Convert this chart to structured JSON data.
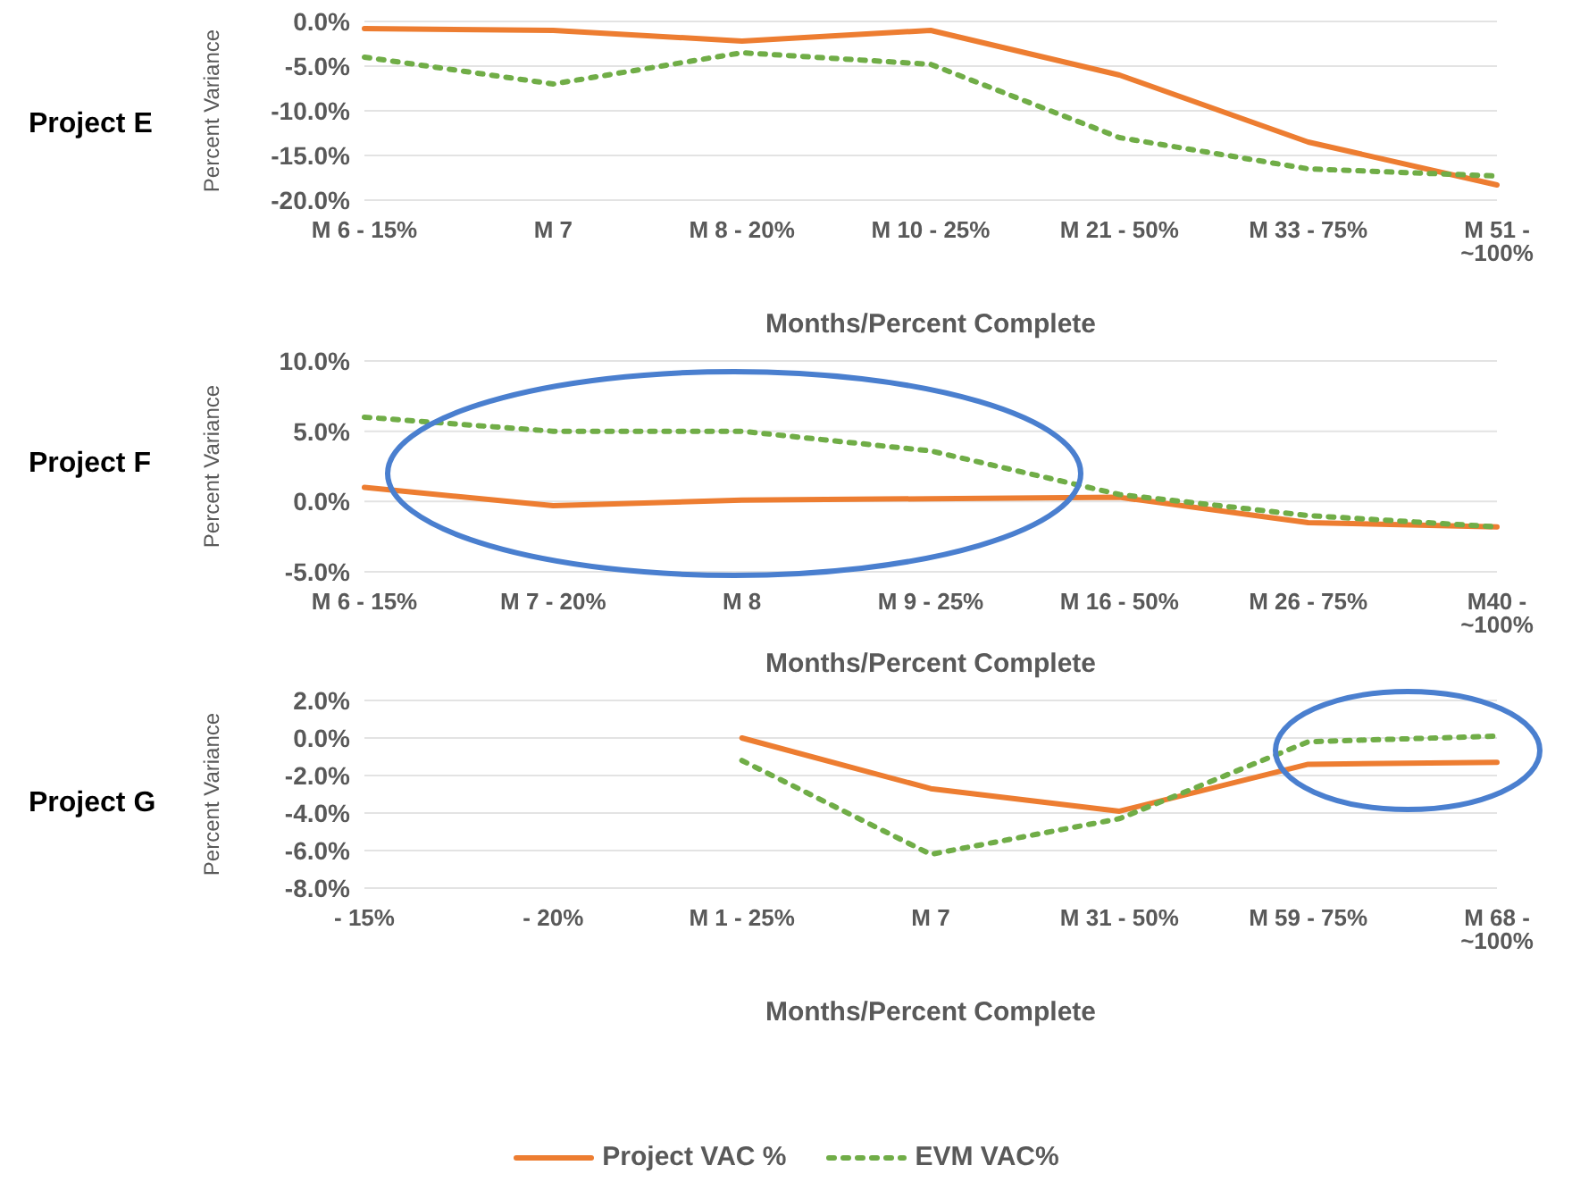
{
  "chart_data": [
    {
      "type": "line",
      "title": "Project E",
      "xlabel": "Months/Percent Complete",
      "ylabel": "Percent Variance",
      "categories": [
        "M 6 - 15%",
        "M 7",
        "M 8 - 20%",
        "M 10 - 25%",
        "M 21 - 50%",
        "M 33 - 75%",
        "M 51 - ~100%"
      ],
      "series": [
        {
          "color": "#ed7d31",
          "line_style": "solid",
          "values": [
            -0.8,
            -1,
            -2.2,
            -1,
            -6,
            -13.5,
            -18.3
          ]
        },
        {
          "color": "#70ad47",
          "line_style": "dotted",
          "values": [
            -4,
            -7,
            -3.5,
            -4.8,
            -13,
            -16.5,
            -17.3
          ]
        }
      ],
      "ylim": [
        -20,
        0
      ],
      "yticks": [
        {
          "value": -20,
          "label": "-20.0%"
        },
        {
          "value": -15,
          "label": "-15.0%"
        },
        {
          "value": -10,
          "label": "-10.0%"
        },
        {
          "value": -5,
          "label": "-5.0%"
        },
        {
          "value": 0,
          "label": "0.0%"
        }
      ],
      "grid": "y",
      "marker": "none",
      "legend": false
    },
    {
      "type": "line",
      "title": "Project F",
      "xlabel": "Months/Percent Complete",
      "ylabel": "Percent Variance",
      "categories": [
        "M 6 - 15%",
        "M 7 - 20%",
        "M 8",
        "M 9 - 25%",
        "M 16 - 50%",
        "M 26 - 75%",
        "M40 - ~100%"
      ],
      "series": [
        {
          "color": "#ed7d31",
          "line_style": "solid",
          "values": [
            1,
            -0.3,
            0.1,
            0.2,
            0.3,
            -1.5,
            -1.8
          ]
        },
        {
          "color": "#70ad47",
          "line_style": "dotted",
          "values": [
            6,
            5,
            5,
            3.6,
            0.5,
            -1,
            -1.8
          ]
        }
      ],
      "ylim": [
        -5,
        10
      ],
      "yticks": [
        {
          "value": -5,
          "label": "-5.0%"
        },
        {
          "value": 0,
          "label": "0.0%"
        },
        {
          "value": 5,
          "label": "5.0%"
        },
        {
          "value": 10,
          "label": "10.0%"
        }
      ],
      "grid": "y",
      "marker": "none",
      "legend": false
    },
    {
      "type": "line",
      "title": "Project G",
      "xlabel": "Months/Percent Complete",
      "ylabel": "Percent Variance",
      "categories": [
        "- 15%",
        "- 20%",
        "M 1 - 25%",
        "M 7",
        "M 31 - 50%",
        "M 59 - 75%",
        "M 68 - ~100%"
      ],
      "series": [
        {
          "name": "Project VAC %",
          "color": "#ed7d31",
          "line_style": "solid",
          "values": [
            null,
            null,
            0,
            -2.7,
            -3.9,
            -1.4,
            -1.3
          ]
        },
        {
          "name": "EVM VAC%",
          "color": "#70ad47",
          "line_style": "dotted",
          "values": [
            null,
            null,
            -1.2,
            -6.2,
            -4.3,
            -0.2,
            0.1
          ]
        }
      ],
      "ylim": [
        -8,
        2
      ],
      "yticks": [
        {
          "value": -8,
          "label": "-8.0%"
        },
        {
          "value": -6,
          "label": "-6.0%"
        },
        {
          "value": -4,
          "label": "-4.0%"
        },
        {
          "value": -2,
          "label": "-2.0%"
        },
        {
          "value": 0,
          "label": "0.0%"
        },
        {
          "value": 2,
          "label": "2.0%"
        }
      ],
      "grid": "y",
      "marker": "none",
      "legend": "bottom"
    }
  ]
}
